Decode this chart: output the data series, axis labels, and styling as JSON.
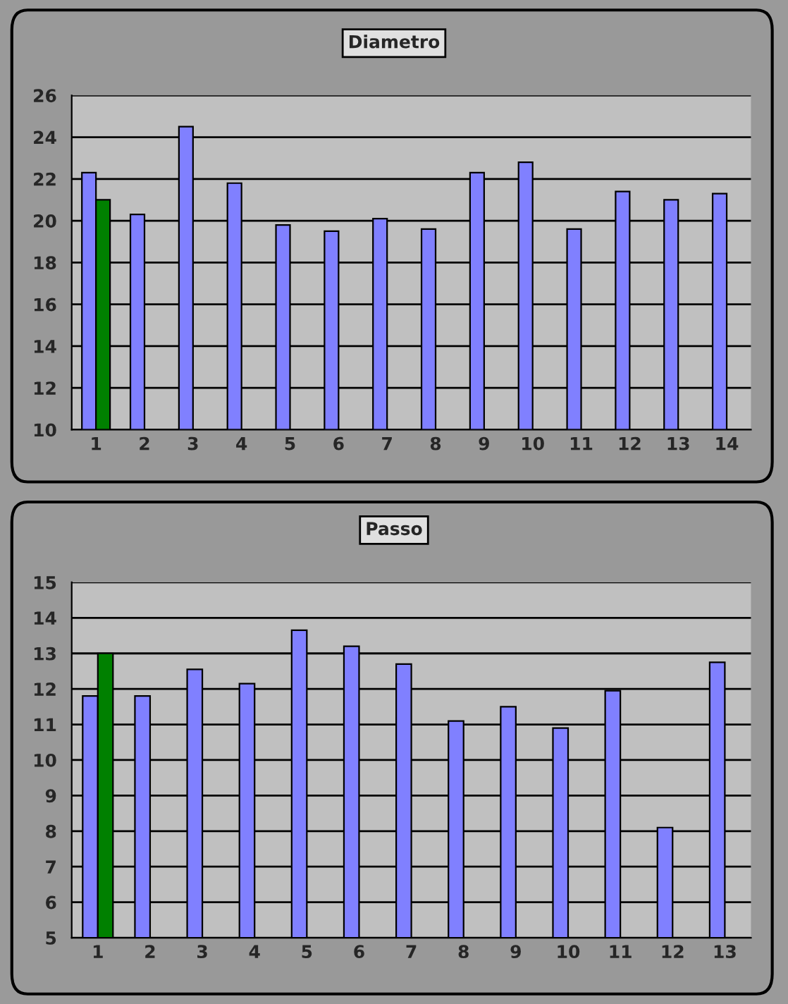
{
  "chart_data": [
    {
      "type": "bar",
      "title": "Diametro",
      "categories": [
        "1",
        "2",
        "3",
        "4",
        "5",
        "6",
        "7",
        "8",
        "9",
        "10",
        "11",
        "12",
        "13",
        "14"
      ],
      "series": [
        {
          "color": "#8080ff",
          "values": [
            22.3,
            20.3,
            24.5,
            21.8,
            19.8,
            19.5,
            20.1,
            19.6,
            22.3,
            22.8,
            19.6,
            21.4,
            21.0,
            21.3
          ]
        },
        {
          "color": "#008000",
          "values": [
            21.0,
            null,
            null,
            null,
            null,
            null,
            null,
            null,
            null,
            null,
            null,
            null,
            null,
            null
          ]
        }
      ],
      "ylim": [
        10,
        26
      ],
      "yticks": [
        10,
        12,
        14,
        16,
        18,
        20,
        22,
        24,
        26
      ],
      "grid": "y"
    },
    {
      "type": "bar",
      "title": "Passo",
      "categories": [
        "1",
        "2",
        "3",
        "4",
        "5",
        "6",
        "7",
        "8",
        "9",
        "10",
        "11",
        "12",
        "13"
      ],
      "series": [
        {
          "color": "#8080ff",
          "values": [
            11.8,
            11.8,
            12.55,
            12.15,
            13.65,
            13.2,
            12.7,
            11.1,
            11.5,
            10.9,
            11.95,
            8.1,
            12.75
          ]
        },
        {
          "color": "#008000",
          "values": [
            13.0,
            null,
            null,
            null,
            null,
            null,
            null,
            null,
            null,
            null,
            null,
            null,
            null
          ]
        }
      ],
      "ylim": [
        5,
        15
      ],
      "yticks": [
        5,
        6,
        7,
        8,
        9,
        10,
        11,
        12,
        13,
        14,
        15
      ],
      "grid": "y"
    }
  ]
}
